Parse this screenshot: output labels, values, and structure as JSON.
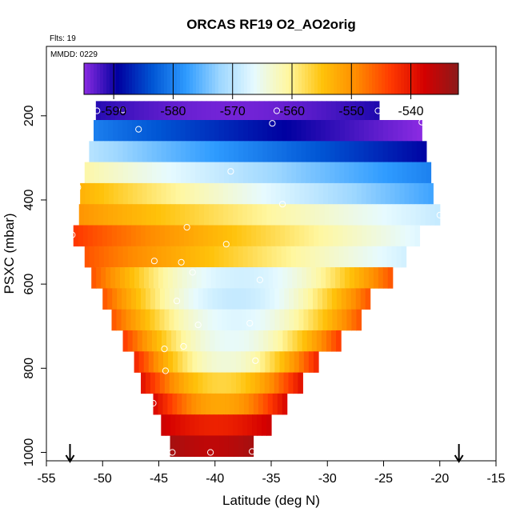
{
  "chart_data": {
    "type": "heatmap",
    "title": "ORCAS RF19 O2_AO2orig",
    "flights_label": "Flts: 19",
    "date_label": "MMDD: 0229",
    "xlabel": "Latitude (deg N)",
    "ylabel": "PSXC (mbar)",
    "xlim": [
      -55,
      -15
    ],
    "ylim": [
      1020,
      35
    ],
    "x_ticks": [
      -55,
      -50,
      -45,
      -40,
      -35,
      -30,
      -25,
      -20,
      -15
    ],
    "y_ticks": [
      200,
      400,
      600,
      800,
      1000
    ],
    "colorbar": {
      "min": -595,
      "max": -532,
      "ticks": [
        -590,
        -580,
        -570,
        -560,
        -550,
        -540
      ],
      "colors": [
        "#8B1A1A",
        "#D40000",
        "#FF3A00",
        "#FF8C00",
        "#FFC20A",
        "#FFF7A0",
        "#E6FAFF",
        "#9ED7FF",
        "#2E9BFF",
        "#0055D4",
        "#0000A0",
        "#8B2BE2"
      ]
    },
    "layers": [
      {
        "p": 190,
        "lat_min": -50.6,
        "lat_max": -25.4,
        "base": -590,
        "hi": -594,
        "gradient": "center"
      },
      {
        "p": 235,
        "lat_min": -50.8,
        "lat_max": -21.6,
        "base": -580,
        "hi": -595,
        "gradient": "north"
      },
      {
        "p": 285,
        "lat_min": -51.2,
        "lat_max": -21.2,
        "base": -570,
        "hi": -589,
        "gradient": "north"
      },
      {
        "p": 335,
        "lat_min": -51.6,
        "lat_max": -20.8,
        "base": -561,
        "hi": -580,
        "gradient": "north"
      },
      {
        "p": 385,
        "lat_min": -52.0,
        "lat_max": -20.6,
        "base": -553,
        "hi": -577,
        "gradient": "north"
      },
      {
        "p": 435,
        "lat_min": -52.1,
        "lat_max": -20.0,
        "base": -550,
        "hi": -569,
        "gradient": "north"
      },
      {
        "p": 485,
        "lat_min": -52.6,
        "lat_max": -21.8,
        "base": -543,
        "hi": -567,
        "gradient": "north"
      },
      {
        "p": 535,
        "lat_min": -51.6,
        "lat_max": -23.0,
        "base": -545,
        "hi": -568,
        "gradient": "north"
      },
      {
        "p": 585,
        "lat_min": -51.0,
        "lat_max": -24.2,
        "base": -545,
        "hi": -568,
        "gradient": "mid"
      },
      {
        "p": 635,
        "lat_min": -50.0,
        "lat_max": -26.2,
        "base": -545,
        "hi": -569,
        "gradient": "mid"
      },
      {
        "p": 685,
        "lat_min": -49.2,
        "lat_max": -27.0,
        "base": -545,
        "hi": -567,
        "gradient": "mid"
      },
      {
        "p": 735,
        "lat_min": -48.2,
        "lat_max": -28.8,
        "base": -543,
        "hi": -566,
        "gradient": "mid"
      },
      {
        "p": 785,
        "lat_min": -47.2,
        "lat_max": -30.8,
        "base": -541,
        "hi": -564,
        "gradient": "mid"
      },
      {
        "p": 835,
        "lat_min": -46.6,
        "lat_max": -32.2,
        "base": -539,
        "hi": -557,
        "gradient": "mid"
      },
      {
        "p": 885,
        "lat_min": -45.5,
        "lat_max": -33.6,
        "base": -538,
        "hi": -552,
        "gradient": "mid"
      },
      {
        "p": 935,
        "lat_min": -44.8,
        "lat_max": -35.0,
        "base": -537,
        "hi": -541,
        "gradient": "mid"
      },
      {
        "p": 985,
        "lat_min": -44.0,
        "lat_max": -36.6,
        "base": -534,
        "hi": -536,
        "gradient": "mid"
      }
    ],
    "points": [
      {
        "lat": -50.5,
        "p": 188
      },
      {
        "lat": -48.2,
        "p": 186
      },
      {
        "lat": -34.5,
        "p": 188
      },
      {
        "lat": -25.5,
        "p": 188
      },
      {
        "lat": -46.8,
        "p": 232
      },
      {
        "lat": -34.9,
        "p": 218
      },
      {
        "lat": -21.6,
        "p": 215
      },
      {
        "lat": -38.6,
        "p": 332
      },
      {
        "lat": -52.2,
        "p": 370
      },
      {
        "lat": -34.0,
        "p": 410
      },
      {
        "lat": -20.0,
        "p": 436
      },
      {
        "lat": -42.5,
        "p": 465
      },
      {
        "lat": -52.7,
        "p": 483
      },
      {
        "lat": -39.0,
        "p": 505
      },
      {
        "lat": -45.4,
        "p": 545
      },
      {
        "lat": -43.0,
        "p": 548
      },
      {
        "lat": -42.0,
        "p": 572
      },
      {
        "lat": -36.0,
        "p": 590
      },
      {
        "lat": -43.4,
        "p": 640
      },
      {
        "lat": -41.5,
        "p": 697
      },
      {
        "lat": -36.9,
        "p": 693
      },
      {
        "lat": -44.5,
        "p": 754
      },
      {
        "lat": -42.8,
        "p": 748
      },
      {
        "lat": -36.4,
        "p": 782
      },
      {
        "lat": -44.4,
        "p": 806
      },
      {
        "lat": -45.5,
        "p": 883
      },
      {
        "lat": -43.8,
        "p": 1000
      },
      {
        "lat": -40.4,
        "p": 1000
      },
      {
        "lat": -36.7,
        "p": 998
      }
    ],
    "arrows": [
      -52.9,
      -18.3
    ]
  }
}
